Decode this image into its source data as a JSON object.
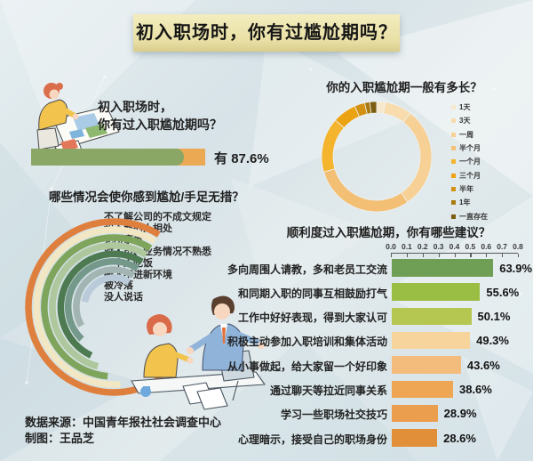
{
  "page": {
    "title": "初入职场时，你有过尴尬期吗？"
  },
  "q1": {
    "question_line1": "初入职场时，",
    "question_line2": "你有过入职尴尬期吗？",
    "answer_label": "有",
    "answer_value": "87.6%",
    "bar_fill_color": "#8ba765",
    "bar_rest_color": "#eaa952"
  },
  "duration": {
    "title": "你的入职尴尬期一般有多长？",
    "legend": [
      {
        "label": "1天",
        "color": "#f7e8cc"
      },
      {
        "label": "3天",
        "color": "#f8dcae"
      },
      {
        "label": "一周",
        "color": "#f7d096"
      },
      {
        "label": "半个月",
        "color": "#f3bf74"
      },
      {
        "label": "一个月",
        "color": "#f4b42d"
      },
      {
        "label": "三个月",
        "color": "#eca312"
      },
      {
        "label": "半年",
        "color": "#d29110"
      },
      {
        "label": "1年",
        "color": "#a9790f"
      },
      {
        "label": "一直存在",
        "color": "#7c5c10"
      }
    ]
  },
  "situations": {
    "title": "哪些情况会使你感到尴尬/手足无措？",
    "items": [
      "不了解公司的不成文规定",
      "和不熟的人相处",
      "无所事事",
      "对人员、业务情况不熟悉",
      "一个人吃饭",
      "融入不进新环境",
      "被冷落",
      "没人说话"
    ],
    "arc_colors": [
      "#df7f3e",
      "#f1e7c4",
      "#7ea55b",
      "#aec79c",
      "#4d7a50",
      "#74998b",
      "#a3b5b3",
      "#b9cbd9"
    ]
  },
  "suggestions": {
    "title": "顺利度过入职尴尬期，你有哪些建议？",
    "axis_ticks": [
      "0.0",
      "0.1",
      "0.2",
      "0.3",
      "0.4",
      "0.5",
      "0.6",
      "0.7",
      "0.8"
    ],
    "rows": [
      {
        "label": "多向周围人请教，多和老员工交流",
        "display": "63.9%",
        "color": "#6f9e55"
      },
      {
        "label": "和同期入职的同事互相鼓励打气",
        "display": "55.6%",
        "color": "#9abd44"
      },
      {
        "label": "工作中好好表现，得到大家认可",
        "display": "50.1%",
        "color": "#b5c751"
      },
      {
        "label": "积极主动参加入职培训和集体活动",
        "display": "49.3%",
        "color": "#f6d49c"
      },
      {
        "label": "从小事做起，给大家留一个好印象",
        "display": "43.6%",
        "color": "#f3bc7d"
      },
      {
        "label": "通过聊天等拉近同事关系",
        "display": "38.6%",
        "color": "#efa654"
      },
      {
        "label": "学习一些职场社交技巧",
        "display": "28.9%",
        "color": "#eb9e4e"
      },
      {
        "label": "心理暗示，接受自己的职场身份",
        "display": "28.6%",
        "color": "#e28f3a"
      }
    ]
  },
  "source": {
    "line1": "数据来源：中国青年报社社会调查中心",
    "line2": "制图：王品芝"
  },
  "chart_data": [
    {
      "type": "bar",
      "title": "初入职场时，你有过入职尴尬期吗？",
      "categories": [
        "有"
      ],
      "values": [
        87.6
      ],
      "unit": "%",
      "xlim": [
        0,
        100
      ],
      "orientation": "horizontal"
    },
    {
      "type": "pie",
      "title": "你的入职尴尬期一般有多长？",
      "categories": [
        "1天",
        "3天",
        "一周",
        "半个月",
        "一个月",
        "三个月",
        "半年",
        "1年",
        "一直存在"
      ],
      "values_estimated_pct": [
        2.5,
        8,
        30,
        30,
        16,
        7,
        3,
        1.5,
        2
      ],
      "legend_position": "right",
      "note": "donut chart; segment shares estimated from arc angles (no numeric labels shown)"
    },
    {
      "type": "bar",
      "title": "哪些情况会使你感到尴尬/手足无措？",
      "categories": [
        "不了解公司的不成文规定",
        "和不熟的人相处",
        "无所事事",
        "对人员、业务情况不熟悉",
        "一个人吃饭",
        "融入不进新环境",
        "被冷落",
        "没人说话"
      ],
      "values_arc_sweep_deg": [
        247,
        217,
        207,
        197,
        187,
        167,
        152,
        112
      ],
      "note": "radial half-ring ranking chart; arc sweep angles estimated from pixels, no numeric labels shown"
    },
    {
      "type": "bar",
      "title": "顺利度过入职尴尬期，你有哪些建议？",
      "categories": [
        "多向周围人请教，多和老员工交流",
        "和同期入职的同事互相鼓励打气",
        "工作中好好表现，得到大家认可",
        "积极主动参加入职培训和集体活动",
        "从小事做起，给大家留一个好印象",
        "通过聊天等拉近同事关系",
        "学习一些职场社交技巧",
        "心理暗示，接受自己的职场身份"
      ],
      "values": [
        63.9,
        55.6,
        50.1,
        49.3,
        43.6,
        38.6,
        28.9,
        28.6
      ],
      "unit": "%",
      "xlabel": "",
      "xlim": [
        0.0,
        0.8
      ],
      "axis_ticks": [
        0.0,
        0.1,
        0.2,
        0.3,
        0.4,
        0.5,
        0.6,
        0.7,
        0.8
      ],
      "orientation": "horizontal",
      "grid": false
    }
  ]
}
